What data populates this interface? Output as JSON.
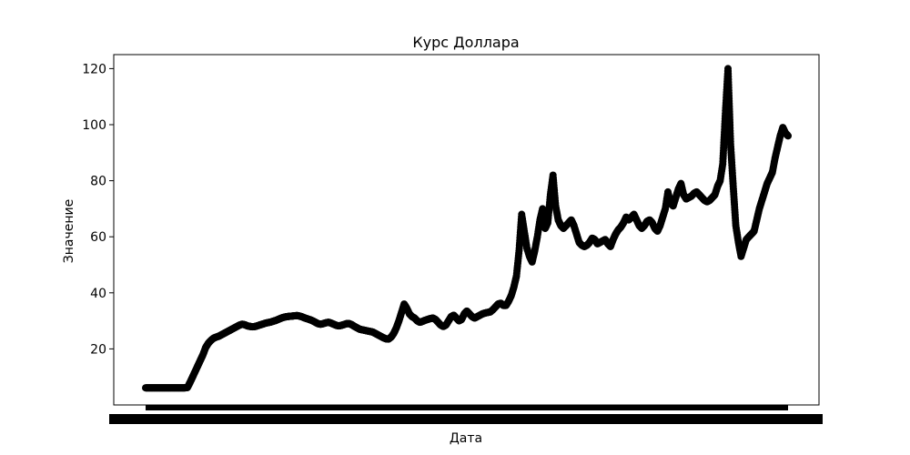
{
  "chart_data": {
    "type": "scatter",
    "title": "Курс Доллара",
    "xlabel": "Дата",
    "ylabel": "Значение",
    "ylim": [
      0,
      125
    ],
    "yticks": [
      20,
      40,
      60,
      80,
      100,
      120
    ],
    "grid": false,
    "legend": "none",
    "marker_color": "#000000",
    "x_tick_labels": "overlapping, illegible (one per date)",
    "series": [
      {
        "values": [
          6.1,
          6.1,
          6.1,
          6.1,
          6.1,
          6.1,
          6.1,
          6.1,
          6.1,
          6.1,
          6.1,
          6.1,
          6.1,
          6.1,
          6.1,
          6.1,
          6.2,
          8.0,
          10.0,
          12.0,
          14.0,
          16.0,
          18.0,
          20.5,
          22.0,
          23.0,
          23.8,
          24.2,
          24.5,
          25.0,
          25.5,
          26.0,
          26.5,
          27.0,
          27.5,
          28.0,
          28.5,
          28.8,
          28.6,
          28.2,
          28.0,
          27.9,
          28.0,
          28.3,
          28.6,
          28.9,
          29.2,
          29.4,
          29.6,
          29.9,
          30.2,
          30.6,
          31.0,
          31.3,
          31.5,
          31.6,
          31.7,
          31.8,
          31.9,
          31.7,
          31.4,
          31.0,
          30.7,
          30.4,
          30.0,
          29.5,
          29.0,
          28.8,
          29.0,
          29.3,
          29.5,
          29.2,
          28.8,
          28.4,
          28.2,
          28.4,
          28.7,
          29.0,
          29.0,
          28.6,
          28.0,
          27.5,
          27.0,
          26.8,
          26.6,
          26.4,
          26.2,
          26.0,
          25.5,
          25.0,
          24.5,
          24.0,
          23.6,
          23.5,
          24.2,
          25.5,
          27.5,
          30.0,
          33.0,
          36.0,
          34.5,
          32.5,
          31.5,
          31.0,
          30.0,
          29.5,
          29.8,
          30.2,
          30.5,
          30.8,
          31.0,
          30.5,
          29.5,
          28.5,
          28.0,
          28.5,
          30.0,
          31.5,
          32.0,
          31.0,
          30.0,
          30.5,
          32.5,
          33.5,
          32.5,
          31.5,
          31.0,
          31.5,
          32.0,
          32.5,
          32.8,
          33.0,
          33.2,
          34.0,
          35.0,
          36.0,
          36.3,
          35.5,
          35.5,
          37.0,
          39.0,
          42.0,
          46.0,
          55.0,
          68.0,
          62.0,
          56.0,
          53.0,
          51.0,
          55.0,
          60.0,
          66.0,
          70.0,
          63.0,
          65.0,
          75.0,
          82.0,
          71.0,
          66.0,
          64.0,
          63.0,
          64.0,
          65.0,
          66.0,
          64.0,
          61.0,
          58.0,
          57.0,
          56.5,
          57.0,
          58.0,
          59.5,
          59.0,
          57.5,
          58.0,
          58.5,
          59.0,
          57.5,
          56.5,
          59.0,
          61.0,
          62.5,
          63.5,
          65.0,
          67.0,
          66.0,
          67.0,
          68.0,
          66.0,
          64.0,
          63.0,
          64.0,
          65.5,
          66.0,
          65.0,
          63.0,
          62.0,
          64.0,
          67.0,
          70.0,
          76.0,
          72.0,
          71.0,
          74.0,
          77.0,
          79.0,
          75.0,
          73.5,
          74.0,
          74.5,
          75.5,
          76.0,
          75.0,
          74.0,
          73.0,
          72.5,
          73.0,
          74.0,
          75.0,
          78.0,
          80.0,
          86.0,
          104.0,
          120.0,
          93.0,
          78.0,
          64.0,
          58.0,
          53.0,
          56.0,
          59.0,
          60.0,
          61.0,
          62.0,
          66.0,
          70.0,
          73.0,
          76.0,
          79.0,
          81.0,
          83.0,
          88.0,
          92.0,
          96.0,
          99.0,
          97.0,
          96.0
        ]
      }
    ]
  }
}
